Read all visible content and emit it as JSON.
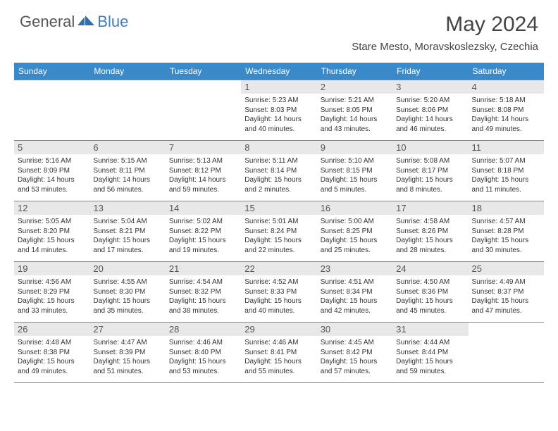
{
  "logo": {
    "general": "General",
    "blue": "Blue"
  },
  "title": "May 2024",
  "location": "Stare Mesto, Moravskoslezsky, Czechia",
  "colors": {
    "header_bg": "#3a8ac9",
    "header_text": "#ffffff",
    "daynum_bg": "#e8e8e8",
    "border": "#888888",
    "logo_gray": "#555555",
    "logo_blue": "#3a7fc4"
  },
  "day_headers": [
    "Sunday",
    "Monday",
    "Tuesday",
    "Wednesday",
    "Thursday",
    "Friday",
    "Saturday"
  ],
  "weeks": [
    [
      null,
      null,
      null,
      {
        "d": "1",
        "sr": "5:23 AM",
        "ss": "8:03 PM",
        "dl": "14 hours and 40 minutes."
      },
      {
        "d": "2",
        "sr": "5:21 AM",
        "ss": "8:05 PM",
        "dl": "14 hours and 43 minutes."
      },
      {
        "d": "3",
        "sr": "5:20 AM",
        "ss": "8:06 PM",
        "dl": "14 hours and 46 minutes."
      },
      {
        "d": "4",
        "sr": "5:18 AM",
        "ss": "8:08 PM",
        "dl": "14 hours and 49 minutes."
      }
    ],
    [
      {
        "d": "5",
        "sr": "5:16 AM",
        "ss": "8:09 PM",
        "dl": "14 hours and 53 minutes."
      },
      {
        "d": "6",
        "sr": "5:15 AM",
        "ss": "8:11 PM",
        "dl": "14 hours and 56 minutes."
      },
      {
        "d": "7",
        "sr": "5:13 AM",
        "ss": "8:12 PM",
        "dl": "14 hours and 59 minutes."
      },
      {
        "d": "8",
        "sr": "5:11 AM",
        "ss": "8:14 PM",
        "dl": "15 hours and 2 minutes."
      },
      {
        "d": "9",
        "sr": "5:10 AM",
        "ss": "8:15 PM",
        "dl": "15 hours and 5 minutes."
      },
      {
        "d": "10",
        "sr": "5:08 AM",
        "ss": "8:17 PM",
        "dl": "15 hours and 8 minutes."
      },
      {
        "d": "11",
        "sr": "5:07 AM",
        "ss": "8:18 PM",
        "dl": "15 hours and 11 minutes."
      }
    ],
    [
      {
        "d": "12",
        "sr": "5:05 AM",
        "ss": "8:20 PM",
        "dl": "15 hours and 14 minutes."
      },
      {
        "d": "13",
        "sr": "5:04 AM",
        "ss": "8:21 PM",
        "dl": "15 hours and 17 minutes."
      },
      {
        "d": "14",
        "sr": "5:02 AM",
        "ss": "8:22 PM",
        "dl": "15 hours and 19 minutes."
      },
      {
        "d": "15",
        "sr": "5:01 AM",
        "ss": "8:24 PM",
        "dl": "15 hours and 22 minutes."
      },
      {
        "d": "16",
        "sr": "5:00 AM",
        "ss": "8:25 PM",
        "dl": "15 hours and 25 minutes."
      },
      {
        "d": "17",
        "sr": "4:58 AM",
        "ss": "8:26 PM",
        "dl": "15 hours and 28 minutes."
      },
      {
        "d": "18",
        "sr": "4:57 AM",
        "ss": "8:28 PM",
        "dl": "15 hours and 30 minutes."
      }
    ],
    [
      {
        "d": "19",
        "sr": "4:56 AM",
        "ss": "8:29 PM",
        "dl": "15 hours and 33 minutes."
      },
      {
        "d": "20",
        "sr": "4:55 AM",
        "ss": "8:30 PM",
        "dl": "15 hours and 35 minutes."
      },
      {
        "d": "21",
        "sr": "4:54 AM",
        "ss": "8:32 PM",
        "dl": "15 hours and 38 minutes."
      },
      {
        "d": "22",
        "sr": "4:52 AM",
        "ss": "8:33 PM",
        "dl": "15 hours and 40 minutes."
      },
      {
        "d": "23",
        "sr": "4:51 AM",
        "ss": "8:34 PM",
        "dl": "15 hours and 42 minutes."
      },
      {
        "d": "24",
        "sr": "4:50 AM",
        "ss": "8:36 PM",
        "dl": "15 hours and 45 minutes."
      },
      {
        "d": "25",
        "sr": "4:49 AM",
        "ss": "8:37 PM",
        "dl": "15 hours and 47 minutes."
      }
    ],
    [
      {
        "d": "26",
        "sr": "4:48 AM",
        "ss": "8:38 PM",
        "dl": "15 hours and 49 minutes."
      },
      {
        "d": "27",
        "sr": "4:47 AM",
        "ss": "8:39 PM",
        "dl": "15 hours and 51 minutes."
      },
      {
        "d": "28",
        "sr": "4:46 AM",
        "ss": "8:40 PM",
        "dl": "15 hours and 53 minutes."
      },
      {
        "d": "29",
        "sr": "4:46 AM",
        "ss": "8:41 PM",
        "dl": "15 hours and 55 minutes."
      },
      {
        "d": "30",
        "sr": "4:45 AM",
        "ss": "8:42 PM",
        "dl": "15 hours and 57 minutes."
      },
      {
        "d": "31",
        "sr": "4:44 AM",
        "ss": "8:44 PM",
        "dl": "15 hours and 59 minutes."
      },
      null
    ]
  ],
  "labels": {
    "sunrise": "Sunrise: ",
    "sunset": "Sunset: ",
    "daylight": "Daylight: "
  }
}
